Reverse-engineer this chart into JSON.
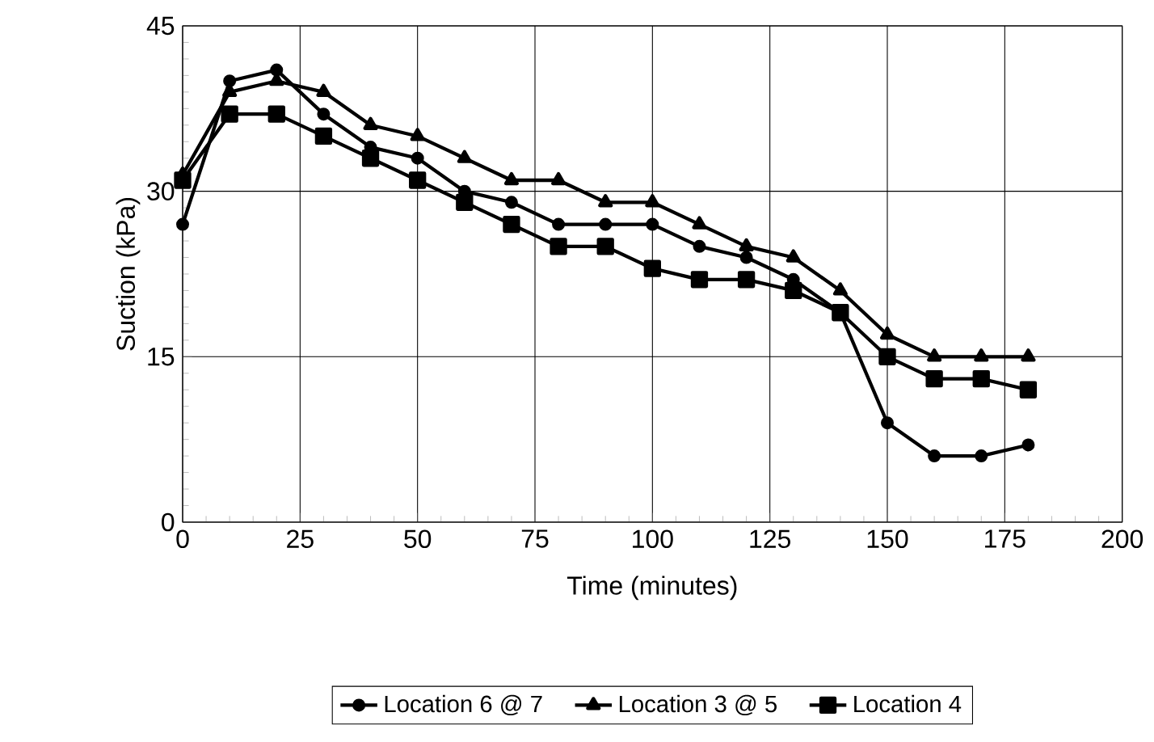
{
  "chart_data": {
    "type": "line",
    "xlabel": "Time (minutes)",
    "ylabel": "Suction (kPa)",
    "x": [
      0,
      10,
      20,
      30,
      40,
      50,
      60,
      70,
      80,
      90,
      100,
      110,
      120,
      130,
      140,
      150,
      160,
      170,
      180
    ],
    "series": [
      {
        "name": "Location 6 @ 7",
        "color": "#000000",
        "marker": "circle",
        "values": [
          27,
          40,
          41,
          37,
          34,
          33,
          30,
          29,
          27,
          27,
          27,
          25,
          24,
          22,
          19,
          9,
          6,
          6,
          7
        ]
      },
      {
        "name": "Location 3 @ 5",
        "color": "#000000",
        "marker": "triangle",
        "values": [
          31.5,
          39,
          40,
          39,
          36,
          35,
          33,
          31,
          31,
          29,
          29,
          27,
          25,
          24,
          21,
          17,
          15,
          15,
          15
        ]
      },
      {
        "name": "Location 4",
        "color": "#000000",
        "marker": "square",
        "values": [
          31,
          37,
          37,
          35,
          33,
          31,
          29,
          27,
          25,
          25,
          23,
          22,
          22,
          21,
          19,
          15,
          13,
          13,
          12
        ]
      }
    ],
    "xlim": [
      0,
      200
    ],
    "xticks": [
      0,
      25,
      50,
      75,
      100,
      125,
      150,
      175,
      200
    ],
    "ylim": [
      0,
      45
    ],
    "yticks": [
      0,
      15,
      30,
      45
    ],
    "grid": true,
    "legend": "bottom",
    "line_style": "solid"
  }
}
